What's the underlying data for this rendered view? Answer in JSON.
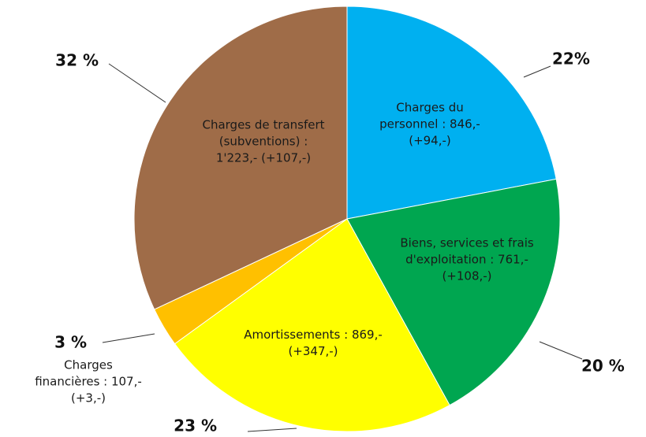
{
  "chart_data": {
    "type": "pie",
    "categories": [
      "Charges du personnel : 846,- (+94,-)",
      "Biens, services et frais d'exploitation : 761,- (+108,-)",
      "Amortissements : 869,- (+347,-)",
      "Charges financières : 107,- (+3,-)",
      "Charges de transfert (subventions) : 1'223,- (+107,-)"
    ],
    "values": [
      22,
      20,
      23,
      3,
      32
    ],
    "value_labels": [
      "22%",
      "20 %",
      "23 %",
      "3 %",
      "32 %"
    ],
    "colors": [
      "#00b0f0",
      "#00a650",
      "#ffff00",
      "#ffc000",
      "#9f6c48"
    ]
  }
}
